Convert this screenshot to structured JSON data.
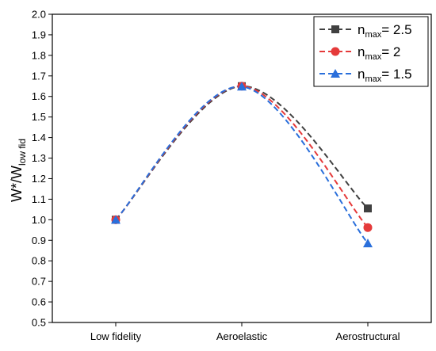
{
  "chart_data": {
    "type": "line",
    "categories": [
      "Low fidelity",
      "Aeroelastic",
      "Aerostructural"
    ],
    "ylabel": {
      "main": "W*/W",
      "subscript": "low fid"
    },
    "xlabel": "",
    "ylim": [
      0.5,
      2.0
    ],
    "yticks": [
      "0.5",
      "0.6",
      "0.7",
      "0.8",
      "0.9",
      "1.0",
      "1.1",
      "1.2",
      "1.3",
      "1.4",
      "1.5",
      "1.6",
      "1.7",
      "1.8",
      "1.9",
      "2.0"
    ],
    "legend_position": "top-right",
    "grid": false,
    "series": [
      {
        "name": {
          "main": "n",
          "subscript": "max",
          "suffix": "= 2.5"
        },
        "values": [
          1.0,
          1.65,
          1.055
        ],
        "color": "#404040",
        "marker": "square"
      },
      {
        "name": {
          "main": "n",
          "subscript": "max",
          "suffix": "= 2"
        },
        "values": [
          1.0,
          1.65,
          0.962
        ],
        "color": "#e53a3a",
        "marker": "circle"
      },
      {
        "name": {
          "main": "n",
          "subscript": "max",
          "suffix": "= 1.5"
        },
        "values": [
          1.0,
          1.648,
          0.885
        ],
        "color": "#2a6fdb",
        "marker": "triangle"
      }
    ]
  }
}
